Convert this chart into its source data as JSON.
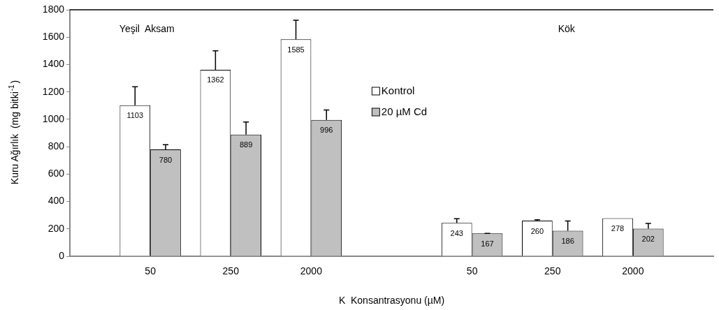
{
  "chart_data": {
    "type": "bar",
    "xlabel": "K  Konsantrasyonu (µM)",
    "ylabel": "Kuru Ağırlık  (mg bitki$^{-1}$)",
    "categories": [
      null,
      "50",
      "250",
      "2000",
      null,
      "50",
      "250",
      "2000",
      null
    ],
    "series": [
      {
        "name": "Kontrol",
        "color": "#ffffff",
        "values": [
          null,
          1103,
          1362,
          1585,
          null,
          243,
          260,
          278,
          null
        ],
        "errors": [
          null,
          [
            1103,
            1238
          ],
          [
            1362,
            1501
          ],
          [
            1585,
            1724
          ],
          null,
          [
            243,
            274
          ],
          [
            260,
            267
          ],
          null,
          null
        ]
      },
      {
        "name": "20 µM Cd",
        "color": "#c0c0c0",
        "values": [
          null,
          780,
          889,
          996,
          null,
          167,
          186,
          202,
          null
        ],
        "errors": [
          null,
          [
            780,
            815
          ],
          [
            889,
            980
          ],
          [
            996,
            1068
          ],
          null,
          [
            167,
            167
          ],
          [
            186,
            257
          ],
          [
            202,
            240
          ],
          null
        ]
      }
    ],
    "ylim": [
      0,
      1800
    ],
    "yticks": [
      0,
      200,
      400,
      600,
      800,
      1000,
      1200,
      1400,
      1600,
      1800
    ],
    "annotations": [
      "Yeşil  Aksam",
      "Kök"
    ],
    "data_labels": true,
    "legend": "top",
    "grid": false
  }
}
